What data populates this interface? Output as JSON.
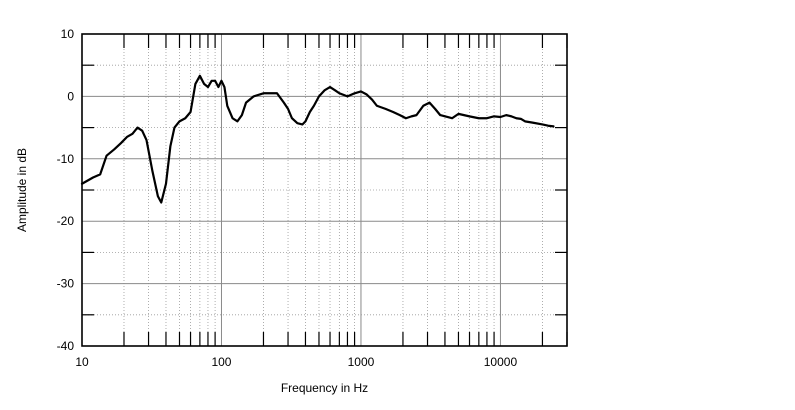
{
  "chart_data": {
    "type": "line",
    "title": "",
    "xlabel": "Frequency in Hz",
    "ylabel": "Amplitude in dB",
    "x_scale": "log",
    "xlim": [
      10,
      30000
    ],
    "ylim": [
      -40,
      10
    ],
    "x_ticks": [
      10,
      100,
      1000,
      10000
    ],
    "x_tick_labels": [
      "10",
      "100",
      "1000",
      "10000"
    ],
    "y_ticks": [
      10,
      0,
      -10,
      -20,
      -30,
      -40
    ],
    "y_tick_labels": [
      "10",
      "0",
      "-10",
      "-20",
      "-30",
      "-40"
    ],
    "grid": true,
    "legend": "none",
    "line_color": "#000000",
    "series": [
      {
        "x": [
          10,
          12,
          13.5,
          15,
          17,
          19,
          21,
          23,
          25,
          27,
          29,
          32,
          35,
          37,
          40,
          43,
          46,
          50,
          55,
          60,
          65,
          70,
          75,
          80,
          85,
          90,
          95,
          100,
          105,
          110,
          120,
          130,
          140,
          150,
          170,
          200,
          250,
          280,
          300,
          320,
          350,
          380,
          400,
          430,
          460,
          500,
          550,
          600,
          650,
          700,
          800,
          900,
          1000,
          1100,
          1200,
          1300,
          1500,
          1700,
          1900,
          2100,
          2300,
          2500,
          2800,
          3100,
          3400,
          3700,
          4000,
          4500,
          5000,
          6000,
          7000,
          8000,
          9000,
          10000,
          11000,
          12000,
          13000,
          14000,
          15000,
          17000,
          20000,
          22000,
          24000
        ],
        "y": [
          -14,
          -13,
          -12.5,
          -9.5,
          -8.5,
          -7.5,
          -6.5,
          -6,
          -5,
          -5.5,
          -7,
          -12,
          -16,
          -17,
          -14,
          -8,
          -5,
          -4,
          -3.5,
          -2.5,
          2,
          3.3,
          2,
          1.5,
          2.5,
          2.5,
          1.5,
          2.5,
          1.5,
          -1.5,
          -3.5,
          -4,
          -3,
          -1,
          0,
          0.5,
          0.5,
          -1,
          -2,
          -3.5,
          -4.3,
          -4.5,
          -4,
          -2.5,
          -1.5,
          0,
          1,
          1.5,
          1,
          0.5,
          0,
          0.5,
          0.8,
          0.3,
          -0.5,
          -1.5,
          -2,
          -2.5,
          -3,
          -3.5,
          -3.2,
          -3,
          -1.5,
          -1,
          -2,
          -3,
          -3.2,
          -3.5,
          -2.8,
          -3.2,
          -3.5,
          -3.5,
          -3.2,
          -3.3,
          -3,
          -3.2,
          -3.5,
          -3.6,
          -4,
          -4.2,
          -4.5,
          -4.7,
          -4.8
        ]
      }
    ]
  }
}
